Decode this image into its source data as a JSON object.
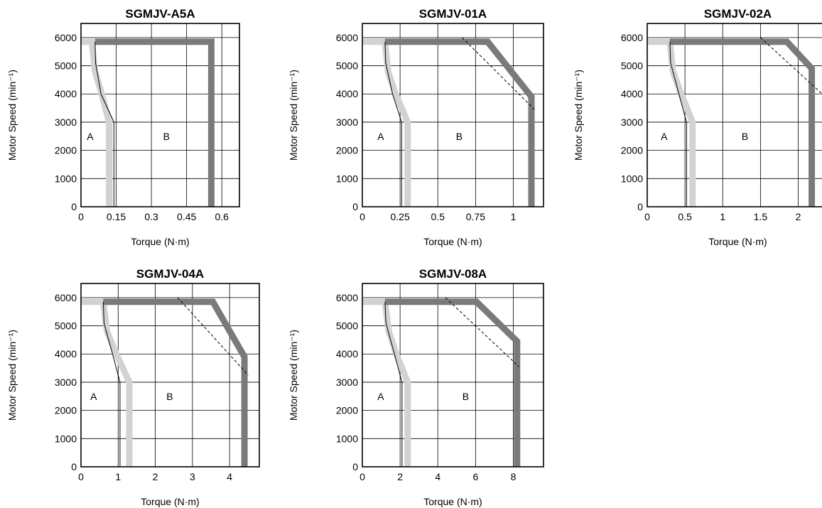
{
  "chart_data": [
    {
      "type": "line",
      "title": "SGMJV-A5A",
      "xlabel": "Torque (N·m)",
      "ylabel": "Motor Speed (min⁻¹)",
      "xlim": [
        0,
        0.675
      ],
      "ylim": [
        0,
        6500
      ],
      "xticks": [
        0,
        0.15,
        0.3,
        0.45,
        0.6
      ],
      "xtick_labels": [
        "0",
        "0.15",
        "0.3",
        "0.45",
        "0.6"
      ],
      "yticks": [
        0,
        1000,
        2000,
        3000,
        4000,
        5000,
        6000
      ],
      "grid": true,
      "regions": [
        {
          "label": "A",
          "x": 0.025,
          "y": 2500
        },
        {
          "label": "B",
          "x": 0.35,
          "y": 2500
        }
      ],
      "series": [
        {
          "style": "light",
          "points": [
            [
              0,
              5850
            ],
            [
              0.046,
              5850
            ],
            [
              0.06,
              4800
            ],
            [
              0.088,
              4000
            ],
            [
              0.12,
              3000
            ],
            [
              0.12,
              0
            ]
          ]
        },
        {
          "style": "dark",
          "points": [
            [
              0.06,
              5850
            ],
            [
              0.555,
              5850
            ],
            [
              0.555,
              0
            ]
          ]
        },
        {
          "style": "thin",
          "points": [
            [
              0.06,
              5850
            ],
            [
              0.062,
              5100
            ],
            [
              0.085,
              4000
            ],
            [
              0.14,
              3000
            ],
            [
              0.14,
              0
            ]
          ]
        }
      ]
    },
    {
      "type": "line",
      "title": "SGMJV-01A",
      "xlabel": "Torque (N·m)",
      "ylabel": "Motor Speed (min⁻¹)",
      "xlim": [
        0,
        1.2
      ],
      "ylim": [
        0,
        6500
      ],
      "xticks": [
        0,
        0.25,
        0.5,
        0.75,
        1
      ],
      "xtick_labels": [
        "0",
        "0.25",
        "0.5",
        "0.75",
        "1"
      ],
      "yticks": [
        0,
        1000,
        2000,
        3000,
        4000,
        5000,
        6000
      ],
      "grid": true,
      "regions": [
        {
          "label": "A",
          "x": 0.1,
          "y": 2500
        },
        {
          "label": "B",
          "x": 0.62,
          "y": 2500
        }
      ],
      "series": [
        {
          "style": "light",
          "points": [
            [
              0,
              5850
            ],
            [
              0.15,
              5850
            ],
            [
              0.17,
              4800
            ],
            [
              0.22,
              4000
            ],
            [
              0.3,
              3000
            ],
            [
              0.3,
              0
            ]
          ]
        },
        {
          "style": "dark",
          "points": [
            [
              0.15,
              5850
            ],
            [
              0.83,
              5850
            ],
            [
              1.12,
              3900
            ],
            [
              1.12,
              0
            ]
          ]
        },
        {
          "style": "thin",
          "points": [
            [
              0.15,
              5850
            ],
            [
              0.155,
              5100
            ],
            [
              0.2,
              4000
            ],
            [
              0.26,
              3000
            ],
            [
              0.26,
              0
            ]
          ]
        },
        {
          "style": "dashed",
          "points": [
            [
              0.66,
              6000
            ],
            [
              1.14,
              3450
            ]
          ]
        }
      ]
    },
    {
      "type": "line",
      "title": "SGMJV-02A",
      "xlabel": "Torque (N·m)",
      "ylabel": "Motor Speed (min⁻¹)",
      "xlim": [
        0,
        2.4
      ],
      "ylim": [
        0,
        6500
      ],
      "xticks": [
        0,
        0.5,
        1,
        1.5,
        2
      ],
      "xtick_labels": [
        "0",
        "0.5",
        "1",
        "1.5",
        "2"
      ],
      "yticks": [
        0,
        1000,
        2000,
        3000,
        4000,
        5000,
        6000
      ],
      "grid": true,
      "regions": [
        {
          "label": "A",
          "x": 0.18,
          "y": 2500
        },
        {
          "label": "B",
          "x": 1.25,
          "y": 2500
        }
      ],
      "series": [
        {
          "style": "light",
          "points": [
            [
              0,
              5850
            ],
            [
              0.3,
              5850
            ],
            [
              0.34,
              4800
            ],
            [
              0.45,
              4000
            ],
            [
              0.6,
              3000
            ],
            [
              0.6,
              0
            ]
          ]
        },
        {
          "style": "dark",
          "points": [
            [
              0.3,
              5850
            ],
            [
              1.85,
              5850
            ],
            [
              2.18,
              4900
            ],
            [
              2.18,
              0
            ]
          ]
        },
        {
          "style": "thin",
          "points": [
            [
              0.3,
              5850
            ],
            [
              0.31,
              5100
            ],
            [
              0.42,
              4000
            ],
            [
              0.52,
              3000
            ],
            [
              0.52,
              0
            ]
          ]
        },
        {
          "style": "dashed",
          "points": [
            [
              1.5,
              6000
            ],
            [
              2.4,
              3800
            ]
          ]
        }
      ]
    },
    {
      "type": "line",
      "title": "SGMJV-04A",
      "xlabel": "Torque (N·m)",
      "ylabel": "Motor Speed (min⁻¹)",
      "xlim": [
        0,
        4.8
      ],
      "ylim": [
        0,
        6500
      ],
      "xticks": [
        0,
        1,
        2,
        3,
        4
      ],
      "xtick_labels": [
        "0",
        "1",
        "2",
        "3",
        "4"
      ],
      "yticks": [
        0,
        1000,
        2000,
        3000,
        4000,
        5000,
        6000
      ],
      "grid": true,
      "regions": [
        {
          "label": "A",
          "x": 0.25,
          "y": 2500
        },
        {
          "label": "B",
          "x": 2.3,
          "y": 2500
        }
      ],
      "series": [
        {
          "style": "light",
          "points": [
            [
              0,
              5850
            ],
            [
              0.6,
              5850
            ],
            [
              0.7,
              4800
            ],
            [
              0.95,
              4000
            ],
            [
              1.3,
              3000
            ],
            [
              1.3,
              0
            ]
          ]
        },
        {
          "style": "dark",
          "points": [
            [
              0.6,
              5850
            ],
            [
              3.55,
              5850
            ],
            [
              4.4,
              3900
            ],
            [
              4.4,
              0
            ]
          ]
        },
        {
          "style": "thin",
          "points": [
            [
              0.6,
              5850
            ],
            [
              0.62,
              5100
            ],
            [
              0.85,
              4000
            ],
            [
              1.05,
              3000
            ],
            [
              1.05,
              0
            ]
          ]
        },
        {
          "style": "dashed",
          "points": [
            [
              2.6,
              6000
            ],
            [
              4.5,
              3250
            ]
          ]
        }
      ]
    },
    {
      "type": "line",
      "title": "SGMJV-08A",
      "xlabel": "Torque (N·m)",
      "ylabel": "Motor Speed (min⁻¹)",
      "xlim": [
        0,
        9.6
      ],
      "ylim": [
        0,
        6500
      ],
      "xticks": [
        0,
        2,
        4,
        6,
        8
      ],
      "xtick_labels": [
        "0",
        "2",
        "4",
        "6",
        "8"
      ],
      "yticks": [
        0,
        1000,
        2000,
        3000,
        4000,
        5000,
        6000
      ],
      "grid": true,
      "regions": [
        {
          "label": "A",
          "x": 0.8,
          "y": 2500
        },
        {
          "label": "B",
          "x": 5.3,
          "y": 2500
        }
      ],
      "series": [
        {
          "style": "light",
          "points": [
            [
              0,
              5850
            ],
            [
              1.2,
              5850
            ],
            [
              1.4,
              4800
            ],
            [
              1.8,
              4000
            ],
            [
              2.4,
              3000
            ],
            [
              2.4,
              0
            ]
          ]
        },
        {
          "style": "dark",
          "points": [
            [
              1.2,
              5850
            ],
            [
              6.05,
              5850
            ],
            [
              8.2,
              4450
            ],
            [
              8.2,
              0
            ]
          ]
        },
        {
          "style": "thin",
          "points": [
            [
              1.2,
              5850
            ],
            [
              1.25,
              5100
            ],
            [
              1.7,
              4000
            ],
            [
              2.1,
              3000
            ],
            [
              2.1,
              0
            ]
          ]
        },
        {
          "style": "dashed",
          "points": [
            [
              4.4,
              6000
            ],
            [
              8.3,
              3550
            ]
          ]
        }
      ]
    }
  ]
}
